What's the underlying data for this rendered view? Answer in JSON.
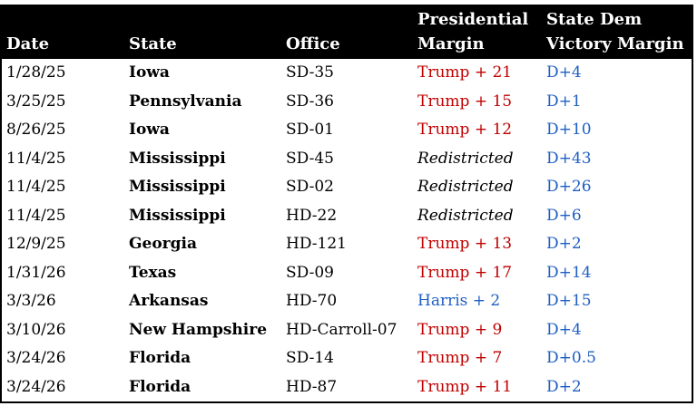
{
  "headers": {
    "date": "Date",
    "state": "State",
    "office": "Office",
    "margin_line1": "Presidential",
    "margin_line2": "Margin",
    "victory_line1": "State Dem",
    "victory_line2": "Victory Margin"
  },
  "colors": {
    "trump": "#c00000",
    "harris": "#1f5fc2",
    "dem": "#1f5fc2",
    "header_bg": "#000000"
  },
  "rows": [
    {
      "date": "1/28/25",
      "state": "Iowa",
      "office": "SD-35",
      "margin": "Trump + 21",
      "margin_type": "trump",
      "victory": "D+4"
    },
    {
      "date": "3/25/25",
      "state": "Pennsylvania",
      "office": "SD-36",
      "margin": "Trump + 15",
      "margin_type": "trump",
      "victory": "D+1"
    },
    {
      "date": "8/26/25",
      "state": "Iowa",
      "office": "SD-01",
      "margin": "Trump + 12",
      "margin_type": "trump",
      "victory": "D+10"
    },
    {
      "date": "11/4/25",
      "state": "Mississippi",
      "office": "SD-45",
      "margin": "Redistricted",
      "margin_type": "redistricted",
      "victory": "D+43"
    },
    {
      "date": "11/4/25",
      "state": "Mississippi",
      "office": "SD-02",
      "margin": "Redistricted",
      "margin_type": "redistricted",
      "victory": "D+26"
    },
    {
      "date": "11/4/25",
      "state": "Mississippi",
      "office": "HD-22",
      "margin": "Redistricted",
      "margin_type": "redistricted",
      "victory": "D+6"
    },
    {
      "date": "12/9/25",
      "state": "Georgia",
      "office": "HD-121",
      "margin": "Trump + 13",
      "margin_type": "trump",
      "victory": "D+2"
    },
    {
      "date": "1/31/26",
      "state": "Texas",
      "office": "SD-09",
      "margin": "Trump + 17",
      "margin_type": "trump",
      "victory": "D+14"
    },
    {
      "date": "3/3/26",
      "state": "Arkansas",
      "office": "HD-70",
      "margin": "Harris + 2",
      "margin_type": "harris",
      "victory": "D+15"
    },
    {
      "date": "3/10/26",
      "state": "New Hampshire",
      "office": "HD-Carroll-07",
      "margin": "Trump + 9",
      "margin_type": "trump",
      "victory": "D+4"
    },
    {
      "date": "3/24/26",
      "state": "Florida",
      "office": "SD-14",
      "margin": "Trump + 7",
      "margin_type": "trump",
      "victory": "D+0.5"
    },
    {
      "date": "3/24/26",
      "state": "Florida",
      "office": "HD-87",
      "margin": "Trump + 11",
      "margin_type": "trump",
      "victory": "D+2"
    }
  ]
}
